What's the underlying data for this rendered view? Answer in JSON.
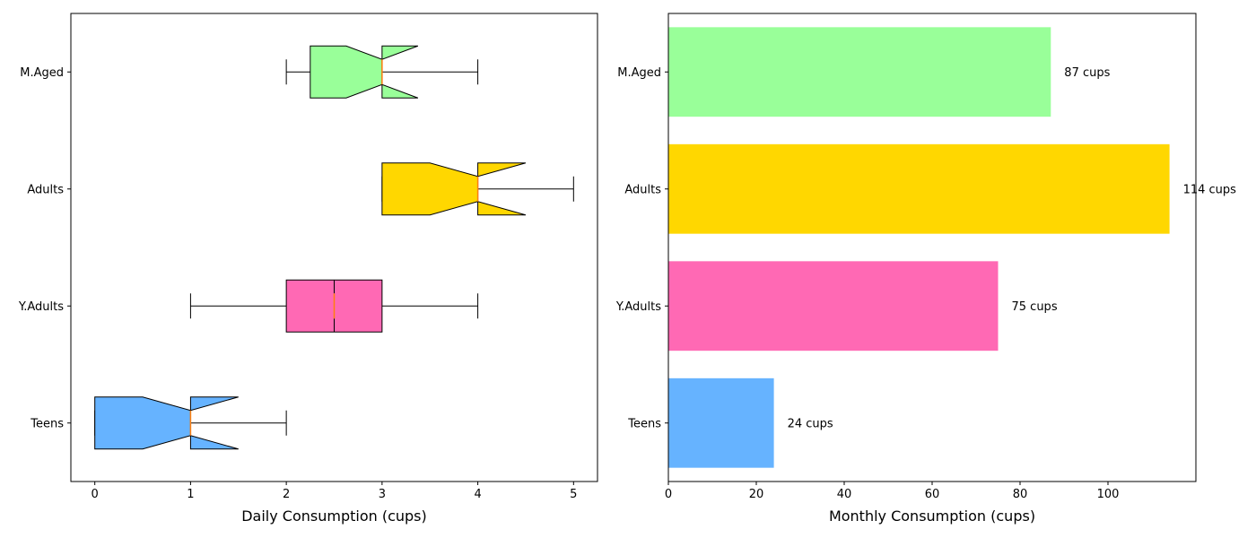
{
  "chart_data": [
    {
      "type": "box",
      "orientation": "horizontal",
      "notched": true,
      "categories": [
        "Teens",
        "Y.Adults",
        "Adults",
        "M.Aged"
      ],
      "boxes": [
        {
          "category": "Teens",
          "whisker_low": 0,
          "q1": 0,
          "median": 1,
          "q3": 1,
          "whisker_high": 2,
          "notch_low": 0.5,
          "notch_high": 1.5,
          "color": "#66b3ff"
        },
        {
          "category": "Y.Adults",
          "whisker_low": 1,
          "q1": 2,
          "median": 2.5,
          "q3": 3,
          "whisker_high": 4,
          "notch_low": 2.5,
          "notch_high": 2.5,
          "color": "#ff69b4"
        },
        {
          "category": "Adults",
          "whisker_low": 3,
          "q1": 3,
          "median": 4,
          "q3": 4,
          "whisker_high": 5,
          "notch_low": 3.5,
          "notch_high": 4.5,
          "color": "#ffd700"
        },
        {
          "category": "M.Aged",
          "whisker_low": 2,
          "q1": 2.25,
          "median": 3,
          "q3": 3,
          "whisker_high": 4,
          "notch_low": 2.625,
          "notch_high": 3.375,
          "color": "#99ff99"
        }
      ],
      "median_color": "#ff7f0e",
      "xlabel": "Daily Consumption (cups)",
      "xlim": [
        -0.25,
        5.25
      ],
      "xticks": [
        0,
        1,
        2,
        3,
        4,
        5
      ]
    },
    {
      "type": "bar",
      "orientation": "horizontal",
      "categories": [
        "Teens",
        "Y.Adults",
        "Adults",
        "M.Aged"
      ],
      "values": [
        24,
        75,
        114,
        87
      ],
      "labels": [
        "24 cups",
        "75 cups",
        "114 cups",
        "87 cups"
      ],
      "colors": [
        "#66b3ff",
        "#ff69b4",
        "#ffd700",
        "#99ff99"
      ],
      "xlabel": "Monthly Consumption (cups)",
      "xlim": [
        0,
        120
      ],
      "xticks": [
        0,
        20,
        40,
        60,
        80,
        100
      ]
    }
  ]
}
